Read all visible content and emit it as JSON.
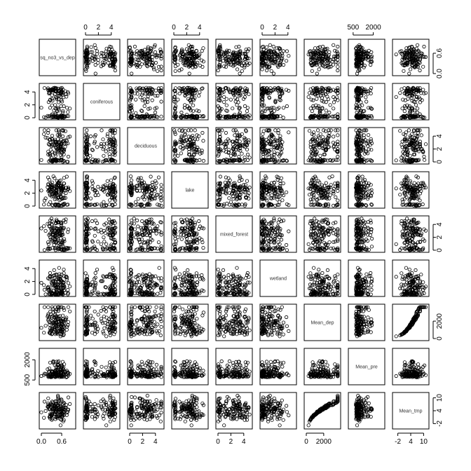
{
  "chart_data": {
    "type": "scatter",
    "kind": "pairs-matrix",
    "variables": [
      {
        "name": "sq_no3_vs_dep",
        "range": [
          0.0,
          0.95
        ],
        "ticks": [
          0.0,
          0.6
        ],
        "tick_labels": [
          "0.0",
          "0.6"
        ]
      },
      {
        "name": "coniferous",
        "range": [
          0,
          5
        ],
        "ticks": [
          0,
          2,
          4
        ],
        "tick_labels": [
          "0",
          "2",
          "4"
        ]
      },
      {
        "name": "deciduous",
        "range": [
          0,
          5
        ],
        "ticks": [
          0,
          2,
          4
        ],
        "tick_labels": [
          "0",
          "2",
          "4"
        ]
      },
      {
        "name": "lake",
        "range": [
          0,
          5
        ],
        "ticks": [
          0,
          2,
          4
        ],
        "tick_labels": [
          "0",
          "2",
          "4"
        ]
      },
      {
        "name": "mixed_forest",
        "range": [
          0,
          5
        ],
        "ticks": [
          0,
          2,
          4
        ],
        "tick_labels": [
          "0",
          "2",
          "4"
        ]
      },
      {
        "name": "wetland",
        "range": [
          0,
          5
        ],
        "ticks": [
          0,
          2,
          4
        ],
        "tick_labels": [
          "0",
          "2",
          "4"
        ]
      },
      {
        "name": "Mean_dep",
        "range": [
          0,
          3700
        ],
        "ticks": [
          0,
          2000
        ],
        "tick_labels": [
          "0",
          "2000"
        ]
      },
      {
        "name": "Mean_pre",
        "range": [
          300,
          2700
        ],
        "ticks": [
          500,
          2000
        ],
        "tick_labels": [
          "500",
          "2000"
        ]
      },
      {
        "name": "Mean_tmp",
        "range": [
          -3.5,
          11.5
        ],
        "ticks": [
          -2,
          4,
          10
        ],
        "tick_labels": [
          "-2",
          "4",
          "10"
        ]
      }
    ],
    "axis_sides": {
      "top": [
        1,
        3,
        5,
        7
      ],
      "bottom": [
        0,
        2,
        4,
        6,
        8
      ],
      "left": [
        1,
        3,
        5,
        7
      ],
      "right": [
        0,
        2,
        4,
        6,
        8
      ]
    },
    "marker": "open-circle",
    "grid": false,
    "legend": "none"
  }
}
